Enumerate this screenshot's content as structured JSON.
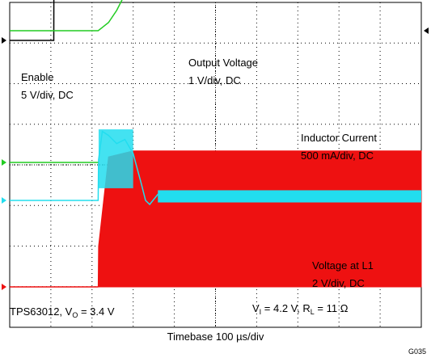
{
  "chart_data": {
    "type": "line",
    "x_unit": "µs",
    "x_range": [
      0,
      1000
    ],
    "horizontal_divisions": 10,
    "vertical_divisions": 8,
    "timebase_label": "Timebase 100 µs/div",
    "footer_code": "G035",
    "bottom_left_label": {
      "prefix": "TPS63012, V",
      "sub": "O",
      "suffix": " = 3.4 V"
    },
    "bottom_right_label": {
      "p1": "V",
      "s1": "I",
      "p2": " = 4.2 V, R",
      "s2": "L",
      "p3": " = 11 Ω"
    },
    "series": [
      {
        "name": "Enable",
        "scale": "5 V/div, DC",
        "color": "#000000",
        "points": [
          [
            0,
            0
          ],
          [
            107,
            0
          ],
          [
            108,
            5
          ],
          [
            1000,
            5
          ]
        ]
      },
      {
        "name": "Output Voltage",
        "scale": "1 V/div, DC",
        "color": "#22cc22",
        "points": [
          [
            0,
            0
          ],
          [
            215,
            0
          ],
          [
            240,
            0.2
          ],
          [
            260,
            0.5
          ],
          [
            300,
            1.3
          ],
          [
            330,
            2.0
          ],
          [
            346,
            2.6
          ],
          [
            350,
            3.4
          ],
          [
            362,
            3.55
          ],
          [
            380,
            3.45
          ],
          [
            1000,
            3.4
          ]
        ]
      },
      {
        "name": "Inductor Current",
        "scale": "500 mA/div, DC",
        "color": "#22ddee",
        "points": [
          [
            0,
            0
          ],
          [
            215,
            0
          ],
          [
            216,
            1.0
          ],
          [
            225,
            1.7
          ],
          [
            240,
            1.6
          ],
          [
            260,
            1.4
          ],
          [
            280,
            1.5
          ],
          [
            300,
            1.15
          ],
          [
            320,
            0.4
          ],
          [
            330,
            0.0
          ],
          [
            340,
            -0.1
          ],
          [
            360,
            0.15
          ],
          [
            1000,
            0.15
          ]
        ]
      },
      {
        "name": "Voltage at L1",
        "scale": "2 V/div, DC",
        "color": "#ee1111",
        "points": [
          [
            0,
            0
          ],
          [
            215,
            0
          ],
          [
            216,
            1.0
          ],
          [
            240,
            3.2
          ],
          [
            300,
            3.35
          ],
          [
            1000,
            3.35
          ]
        ]
      }
    ]
  }
}
